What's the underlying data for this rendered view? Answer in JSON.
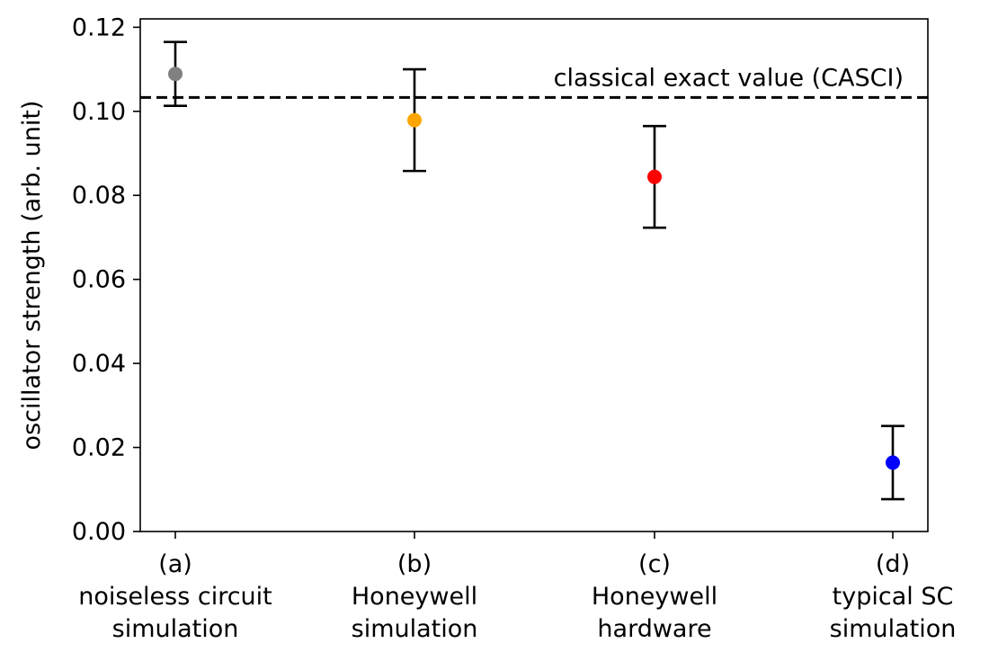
{
  "chart_data": {
    "type": "scatter",
    "title": "",
    "xlabel": "",
    "ylabel": "oscillator strength (arb. unit)",
    "ylim": [
      0,
      0.122
    ],
    "yticks": [
      "0.00",
      "0.02",
      "0.04",
      "0.06",
      "0.08",
      "0.10",
      "0.12"
    ],
    "grid": false,
    "categories": [
      {
        "letter": "(a)",
        "line1": "noiseless circuit",
        "line2": "simulation"
      },
      {
        "letter": "(b)",
        "line1": "Honeywell",
        "line2": "simulation"
      },
      {
        "letter": "(c)",
        "line1": "Honeywell",
        "line2": "hardware"
      },
      {
        "letter": "(d)",
        "line1": "typical SC",
        "line2": "simulation"
      }
    ],
    "points": [
      {
        "value": 0.1089,
        "error": 0.0076,
        "color": "#808080"
      },
      {
        "value": 0.0979,
        "error": 0.0121,
        "color": "#ffa500"
      },
      {
        "value": 0.0844,
        "error": 0.0121,
        "color": "#ff0000"
      },
      {
        "value": 0.0164,
        "error": 0.0087,
        "color": "#0000ff"
      }
    ],
    "reference": {
      "value": 0.1033,
      "label": "classical exact value (CASCI)",
      "style": "dashed",
      "color": "#000000"
    }
  }
}
